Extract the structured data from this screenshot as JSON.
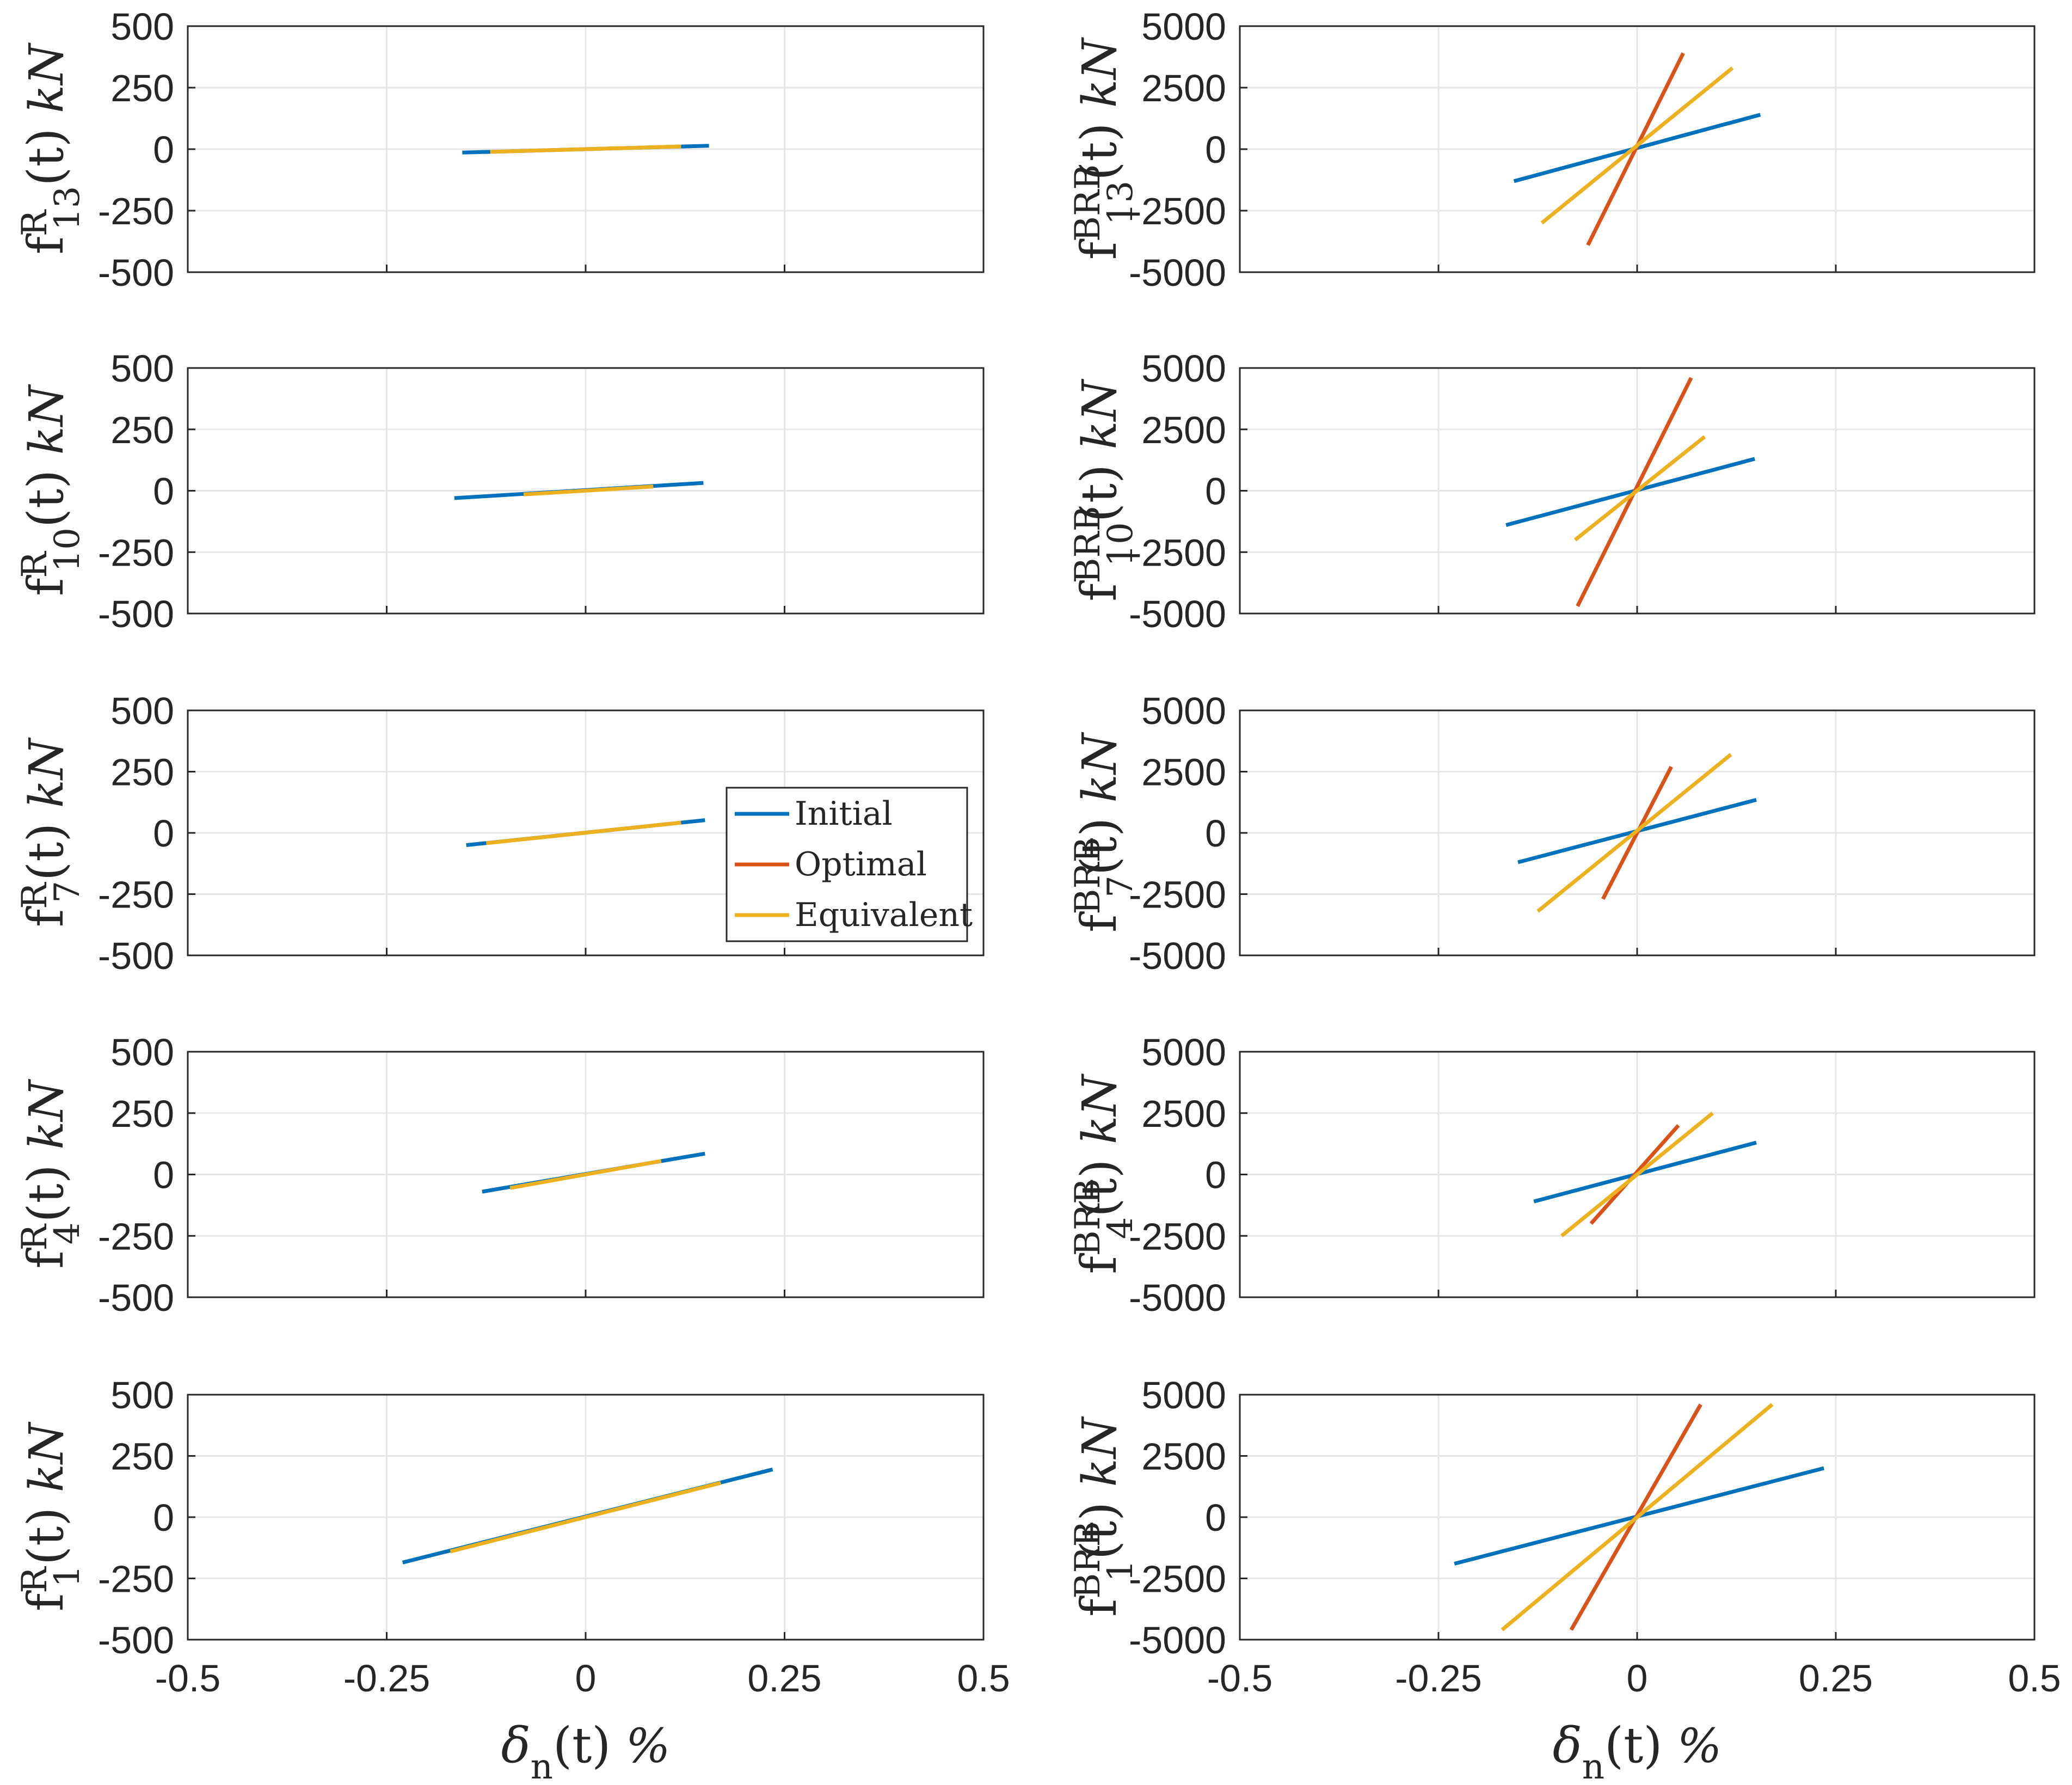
{
  "colors": {
    "initial": "#0072BD",
    "optimal": "#D95319",
    "equivalent": "#EDB120",
    "grid": "#e6e6e6",
    "axis": "#262626"
  },
  "legend": {
    "placement": "right of origin, in storey 7 left panel",
    "entries": [
      "Initial",
      "Optimal",
      "Equivalent"
    ]
  },
  "xlabel": {
    "sym": "δ",
    "sub": "n",
    "arg": "(t)",
    "unit": "%"
  },
  "chart_data": [
    {
      "type": "line",
      "panel": "left-1",
      "ylabel": {
        "base": "f",
        "sup": "R",
        "sub": "13",
        "arg": "(t)",
        "unit": "kN"
      },
      "xlim": [
        -0.5,
        0.5
      ],
      "ylim": [
        -500,
        500
      ],
      "xticks": [
        "-0.5",
        "-0.25",
        "0",
        "0.25",
        "0.5"
      ],
      "yticks": [
        "500",
        "250",
        "0",
        "-250",
        "-500"
      ],
      "show_xticks": false,
      "series": [
        {
          "name": "Initial",
          "x": [
            -0.155,
            0.155
          ],
          "y": [
            -14,
            14
          ]
        },
        {
          "name": "Equivalent",
          "x": [
            -0.12,
            0.12
          ],
          "y": [
            -11,
            11
          ]
        }
      ]
    },
    {
      "type": "line",
      "panel": "right-1",
      "ylabel": {
        "base": "f",
        "sup": "BRB",
        "sub": "13",
        "arg": "(t)",
        "unit": "kN"
      },
      "xlim": [
        -0.5,
        0.5
      ],
      "ylim": [
        -5000,
        5000
      ],
      "xticks": [
        "-0.5",
        "-0.25",
        "0",
        "0.25",
        "0.5"
      ],
      "yticks": [
        "5000",
        "2500",
        "0",
        "-2500",
        "-5000"
      ],
      "show_xticks": false,
      "series": [
        {
          "name": "Initial",
          "x": [
            -0.155,
            0.155
          ],
          "y": [
            -1300,
            1400
          ]
        },
        {
          "name": "Optimal",
          "x": [
            -0.062,
            0.058
          ],
          "y": [
            -3900,
            3900
          ]
        },
        {
          "name": "Equivalent",
          "x": [
            -0.12,
            0.12
          ],
          "y": [
            -3000,
            3300
          ]
        }
      ]
    },
    {
      "type": "line",
      "panel": "left-2",
      "ylabel": {
        "base": "f",
        "sup": "R",
        "sub": "10",
        "arg": "(t)",
        "unit": "kN"
      },
      "xlim": [
        -0.5,
        0.5
      ],
      "ylim": [
        -500,
        500
      ],
      "xticks": [
        "-0.5",
        "-0.25",
        "0",
        "0.25",
        "0.5"
      ],
      "yticks": [
        "500",
        "250",
        "0",
        "-250",
        "-500"
      ],
      "show_xticks": false,
      "series": [
        {
          "name": "Initial",
          "x": [
            -0.165,
            0.148
          ],
          "y": [
            -30,
            32
          ]
        },
        {
          "name": "Equivalent",
          "x": [
            -0.078,
            0.085
          ],
          "y": [
            -15,
            17
          ]
        }
      ]
    },
    {
      "type": "line",
      "panel": "right-2",
      "ylabel": {
        "base": "f",
        "sup": "BRB",
        "sub": "10",
        "arg": "(t)",
        "unit": "kN"
      },
      "xlim": [
        -0.5,
        0.5
      ],
      "ylim": [
        -5000,
        5000
      ],
      "xticks": [
        "-0.5",
        "-0.25",
        "0",
        "0.25",
        "0.5"
      ],
      "yticks": [
        "5000",
        "2500",
        "0",
        "-2500",
        "-5000"
      ],
      "show_xticks": false,
      "series": [
        {
          "name": "Initial",
          "x": [
            -0.165,
            0.148
          ],
          "y": [
            -1400,
            1300
          ]
        },
        {
          "name": "Optimal",
          "x": [
            -0.075,
            0.068
          ],
          "y": [
            -4700,
            4600
          ]
        },
        {
          "name": "Equivalent",
          "x": [
            -0.078,
            0.085
          ],
          "y": [
            -2000,
            2200
          ]
        }
      ]
    },
    {
      "type": "line",
      "panel": "left-3",
      "ylabel": {
        "base": "f",
        "sup": "R",
        "sub": "7",
        "arg": "(t)",
        "unit": "kN"
      },
      "xlim": [
        -0.5,
        0.5
      ],
      "ylim": [
        -500,
        500
      ],
      "xticks": [
        "-0.5",
        "-0.25",
        "0",
        "0.25",
        "0.5"
      ],
      "yticks": [
        "500",
        "250",
        "0",
        "-250",
        "-500"
      ],
      "show_xticks": false,
      "series": [
        {
          "name": "Initial",
          "x": [
            -0.15,
            0.15
          ],
          "y": [
            -50,
            52
          ]
        },
        {
          "name": "Equivalent",
          "x": [
            -0.125,
            0.12
          ],
          "y": [
            -42,
            42
          ]
        }
      ]
    },
    {
      "type": "line",
      "panel": "right-3",
      "ylabel": {
        "base": "f",
        "sup": "BRB",
        "sub": "7",
        "arg": "(t)",
        "unit": "kN"
      },
      "xlim": [
        -0.5,
        0.5
      ],
      "ylim": [
        -5000,
        5000
      ],
      "xticks": [
        "-0.5",
        "-0.25",
        "0",
        "0.25",
        "0.5"
      ],
      "yticks": [
        "5000",
        "2500",
        "0",
        "-2500",
        "-5000"
      ],
      "show_xticks": false,
      "series": [
        {
          "name": "Initial",
          "x": [
            -0.15,
            0.15
          ],
          "y": [
            -1200,
            1350
          ]
        },
        {
          "name": "Optimal",
          "x": [
            -0.043,
            0.043
          ],
          "y": [
            -2700,
            2700
          ]
        },
        {
          "name": "Equivalent",
          "x": [
            -0.125,
            0.118
          ],
          "y": [
            -3200,
            3200
          ]
        }
      ]
    },
    {
      "type": "line",
      "panel": "left-4",
      "ylabel": {
        "base": "f",
        "sup": "R",
        "sub": "4",
        "arg": "(t)",
        "unit": "kN"
      },
      "xlim": [
        -0.5,
        0.5
      ],
      "ylim": [
        -500,
        500
      ],
      "xticks": [
        "-0.5",
        "-0.25",
        "0",
        "0.25",
        "0.5"
      ],
      "yticks": [
        "500",
        "250",
        "0",
        "-250",
        "-500"
      ],
      "show_xticks": false,
      "series": [
        {
          "name": "Initial",
          "x": [
            -0.13,
            0.15
          ],
          "y": [
            -70,
            85
          ]
        },
        {
          "name": "Equivalent",
          "x": [
            -0.095,
            0.095
          ],
          "y": [
            -55,
            55
          ]
        }
      ]
    },
    {
      "type": "line",
      "panel": "right-4",
      "ylabel": {
        "base": "f",
        "sup": "BRB",
        "sub": "4",
        "arg": "(t)",
        "unit": "kN"
      },
      "xlim": [
        -0.5,
        0.5
      ],
      "ylim": [
        -5000,
        5000
      ],
      "xticks": [
        "-0.5",
        "-0.25",
        "0",
        "0.25",
        "0.5"
      ],
      "yticks": [
        "5000",
        "2500",
        "0",
        "-2500",
        "-5000"
      ],
      "show_xticks": false,
      "series": [
        {
          "name": "Initial",
          "x": [
            -0.13,
            0.15
          ],
          "y": [
            -1100,
            1300
          ]
        },
        {
          "name": "Optimal",
          "x": [
            -0.058,
            0.052
          ],
          "y": [
            -2000,
            2000
          ]
        },
        {
          "name": "Equivalent",
          "x": [
            -0.095,
            0.095
          ],
          "y": [
            -2500,
            2500
          ]
        }
      ]
    },
    {
      "type": "line",
      "panel": "left-5",
      "ylabel": {
        "base": "f",
        "sup": "R",
        "sub": "1",
        "arg": "(t)",
        "unit": "kN"
      },
      "xlim": [
        -0.5,
        0.5
      ],
      "ylim": [
        -500,
        500
      ],
      "xticks": [
        "-0.5",
        "-0.25",
        "0",
        "0.25",
        "0.5"
      ],
      "yticks": [
        "500",
        "250",
        "0",
        "-250",
        "-500"
      ],
      "show_xticks": true,
      "series": [
        {
          "name": "Initial",
          "x": [
            -0.23,
            0.235
          ],
          "y": [
            -185,
            195
          ]
        },
        {
          "name": "Equivalent",
          "x": [
            -0.17,
            0.17
          ],
          "y": [
            -140,
            140
          ]
        }
      ]
    },
    {
      "type": "line",
      "panel": "right-5",
      "ylabel": {
        "base": "f",
        "sup": "BRB",
        "sub": "1",
        "arg": "(t)",
        "unit": "kN"
      },
      "xlim": [
        -0.5,
        0.5
      ],
      "ylim": [
        -5000,
        5000
      ],
      "xticks": [
        "-0.5",
        "-0.25",
        "0",
        "0.25",
        "0.5"
      ],
      "yticks": [
        "5000",
        "2500",
        "0",
        "-2500",
        "-5000"
      ],
      "show_xticks": true,
      "series": [
        {
          "name": "Initial",
          "x": [
            -0.23,
            0.235
          ],
          "y": [
            -1900,
            2000
          ]
        },
        {
          "name": "Optimal",
          "x": [
            -0.083,
            0.08
          ],
          "y": [
            -4600,
            4600
          ]
        },
        {
          "name": "Equivalent",
          "x": [
            -0.17,
            0.17
          ],
          "y": [
            -4600,
            4600
          ]
        }
      ]
    }
  ]
}
